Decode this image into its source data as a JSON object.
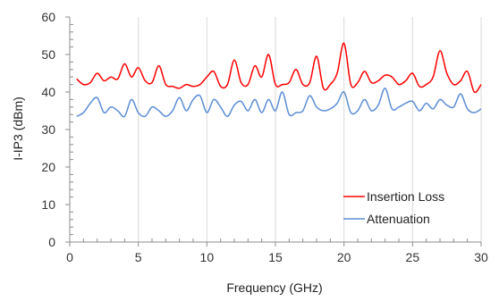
{
  "chart_data": {
    "type": "line",
    "xlabel": "Frequency (GHz)",
    "ylabel": "I-IP3 (dBm)",
    "xlim": [
      0,
      30
    ],
    "ylim": [
      0,
      60
    ],
    "x_ticks": [
      "0",
      "5",
      "10",
      "15",
      "20",
      "25",
      "30"
    ],
    "y_ticks": [
      "0",
      "10",
      "20",
      "30",
      "40",
      "50",
      "60"
    ],
    "grid": "vertical",
    "legend_position": "bottom-right",
    "series": [
      {
        "name": "Insertion Loss",
        "color": "#ff0000",
        "x": [
          0.5,
          1,
          1.5,
          2,
          2.5,
          3,
          3.5,
          4,
          4.5,
          5,
          5.5,
          6,
          6.5,
          7,
          7.5,
          8,
          8.5,
          9,
          9.5,
          10,
          10.5,
          11,
          11.5,
          12,
          12.5,
          13,
          13.5,
          14,
          14.5,
          15,
          15.5,
          16,
          16.5,
          17,
          17.5,
          18,
          18.5,
          19,
          19.5,
          20,
          20.5,
          21,
          21.5,
          22,
          22.5,
          23,
          23.5,
          24,
          24.5,
          25,
          25.5,
          26,
          26.5,
          27,
          27.5,
          28,
          28.5,
          29,
          29.5,
          30
        ],
        "values": [
          43.5,
          42,
          42.5,
          45,
          43,
          44,
          43.5,
          47.5,
          44,
          46.5,
          43,
          42.5,
          47,
          42,
          41.5,
          41,
          42,
          41.5,
          42,
          44,
          45.5,
          41.5,
          42,
          48.5,
          42.5,
          42,
          47,
          44,
          50,
          42,
          42,
          42.5,
          46,
          42,
          42.5,
          49.5,
          41,
          42,
          45,
          53,
          42,
          42.5,
          45.5,
          42.5,
          43,
          44.5,
          44,
          42,
          43,
          45,
          41.5,
          42,
          44,
          51,
          45,
          42,
          43,
          45.5,
          40,
          42
        ]
      },
      {
        "name": "Attenuation",
        "color": "#5b8dd6",
        "x": [
          0.5,
          1,
          1.5,
          2,
          2.5,
          3,
          3.5,
          4,
          4.5,
          5,
          5.5,
          6,
          6.5,
          7,
          7.5,
          8,
          8.5,
          9,
          9.5,
          10,
          10.5,
          11,
          11.5,
          12,
          12.5,
          13,
          13.5,
          14,
          14.5,
          15,
          15.5,
          16,
          16.5,
          17,
          17.5,
          18,
          18.5,
          19,
          19.5,
          20,
          20.5,
          21,
          21.5,
          22,
          22.5,
          23,
          23.5,
          24,
          24.5,
          25,
          25.5,
          26,
          26.5,
          27,
          27.5,
          28,
          28.5,
          29,
          29.5,
          30
        ],
        "values": [
          33.5,
          34.5,
          37,
          38.5,
          34.5,
          36,
          35,
          33.5,
          38,
          34.5,
          33.5,
          36,
          35,
          33.5,
          35,
          38.5,
          35,
          38,
          39,
          34.5,
          38,
          36,
          33.5,
          36.5,
          37.5,
          35,
          38,
          34.5,
          38,
          35,
          40,
          34,
          34.5,
          35,
          39,
          36,
          35,
          35.5,
          37,
          40,
          34.5,
          35,
          38,
          35,
          36.5,
          41,
          35.5,
          36,
          37,
          37.5,
          35,
          37,
          35.5,
          38,
          36.5,
          36,
          39.5,
          35.5,
          34.5,
          35.5
        ]
      }
    ]
  }
}
